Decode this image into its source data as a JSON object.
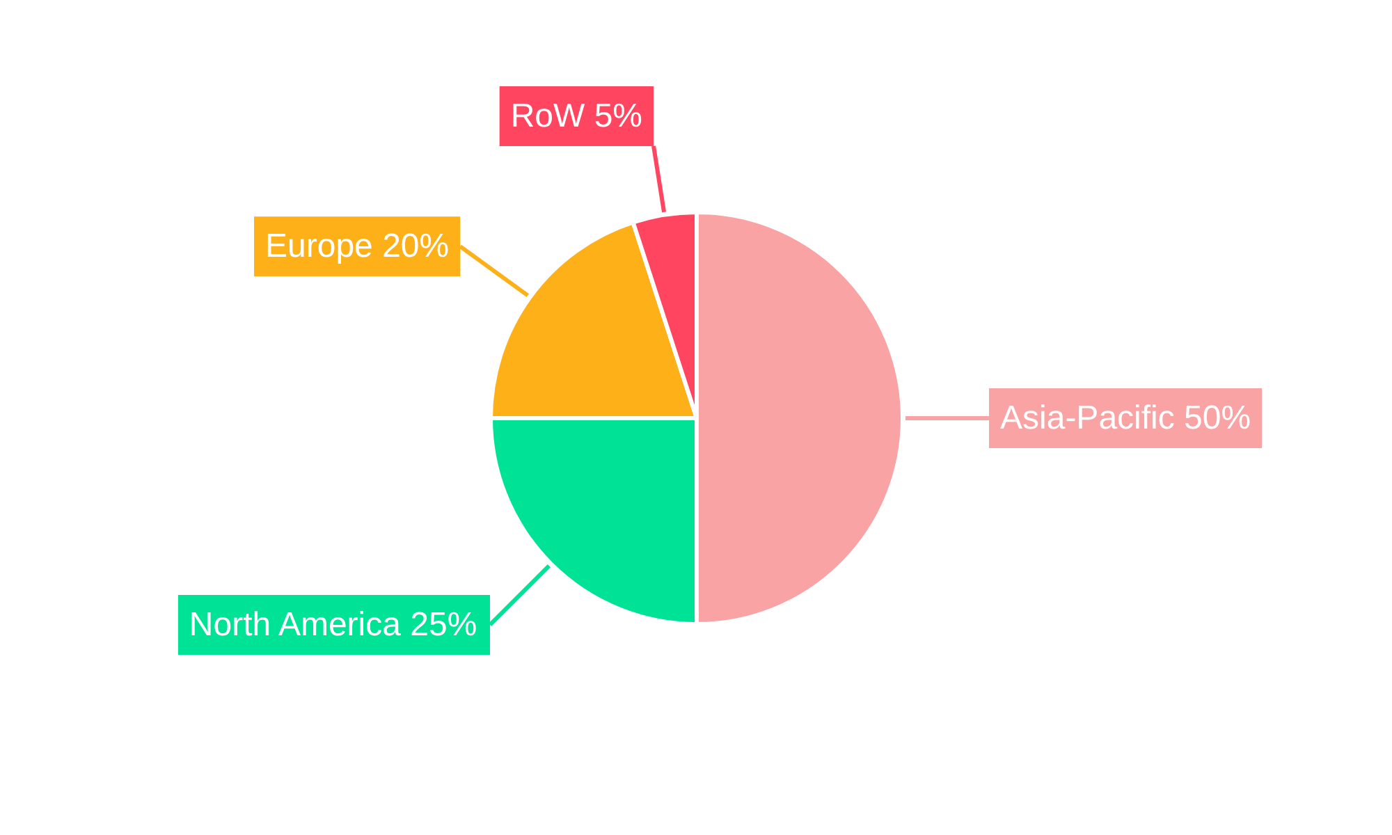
{
  "chart_data": {
    "type": "pie",
    "categories": [
      "Asia-Pacific",
      "North America",
      "Europe",
      "RoW"
    ],
    "values": [
      50,
      25,
      20,
      5
    ],
    "colors": [
      "#f9a3a4",
      "#00e396",
      "#feb019",
      "#ff4560"
    ],
    "value_labels": [
      "50%",
      "25%",
      "20%",
      "5%"
    ]
  }
}
